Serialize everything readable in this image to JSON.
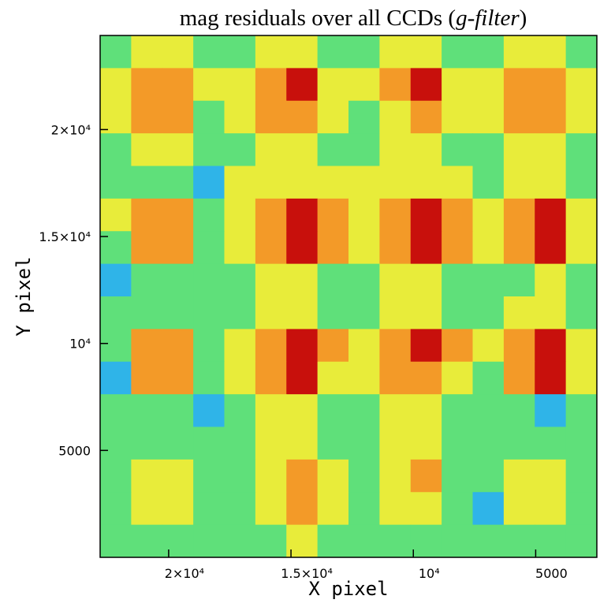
{
  "chart_data": {
    "type": "heatmap",
    "title": [
      "mag residuals over all CCDs (",
      "g-filter",
      ")"
    ],
    "x_label": "X pixel",
    "y_label": "Y pixel",
    "xlim": [
      22800,
      2500
    ],
    "ylim": [
      0,
      24400
    ],
    "xticks": [
      {
        "value": 20000,
        "label": "2×10⁴"
      },
      {
        "value": 15000,
        "label": "1.5×10⁴"
      },
      {
        "value": 10000,
        "label": "10⁴"
      },
      5000
    ],
    "yticks": [
      5000,
      {
        "value": 10000,
        "label": "10⁴"
      },
      {
        "value": 15000,
        "label": "1.5×10⁴"
      },
      {
        "value": 20000,
        "label": "2×10⁴"
      }
    ],
    "colors": [
      "#2fb4e8",
      "#5fe07a",
      "#e8ec3a",
      "#f39a28",
      "#c8100c"
    ],
    "z": [
      [
        1,
        2,
        2,
        1,
        1,
        2,
        2,
        1,
        1,
        2,
        2,
        1,
        1,
        2,
        2,
        1
      ],
      [
        2,
        3,
        3,
        2,
        2,
        3,
        4,
        2,
        2,
        3,
        4,
        2,
        2,
        3,
        3,
        2
      ],
      [
        2,
        3,
        3,
        1,
        2,
        3,
        3,
        2,
        1,
        2,
        3,
        2,
        2,
        3,
        3,
        2
      ],
      [
        1,
        2,
        2,
        1,
        1,
        2,
        2,
        1,
        1,
        2,
        2,
        1,
        1,
        2,
        2,
        1
      ],
      [
        1,
        1,
        1,
        0,
        2,
        2,
        2,
        2,
        2,
        2,
        2,
        2,
        1,
        2,
        2,
        1
      ],
      [
        2,
        3,
        3,
        1,
        2,
        3,
        4,
        3,
        2,
        3,
        4,
        3,
        2,
        3,
        4,
        2
      ],
      [
        1,
        3,
        3,
        1,
        2,
        3,
        4,
        3,
        2,
        3,
        4,
        3,
        2,
        3,
        4,
        2
      ],
      [
        0,
        1,
        1,
        1,
        1,
        2,
        2,
        1,
        1,
        2,
        2,
        1,
        1,
        1,
        2,
        1
      ],
      [
        1,
        1,
        1,
        1,
        1,
        2,
        2,
        1,
        1,
        2,
        2,
        1,
        1,
        2,
        2,
        1
      ],
      [
        1,
        3,
        3,
        1,
        2,
        3,
        4,
        3,
        2,
        3,
        4,
        3,
        2,
        3,
        4,
        2
      ],
      [
        0,
        3,
        3,
        1,
        2,
        3,
        4,
        2,
        2,
        3,
        3,
        2,
        1,
        3,
        4,
        2
      ],
      [
        1,
        1,
        1,
        0,
        1,
        2,
        2,
        1,
        1,
        2,
        2,
        1,
        1,
        1,
        0,
        1
      ],
      [
        1,
        1,
        1,
        1,
        1,
        2,
        2,
        1,
        1,
        2,
        2,
        1,
        1,
        1,
        1,
        1
      ],
      [
        1,
        2,
        2,
        1,
        1,
        2,
        3,
        2,
        1,
        2,
        3,
        1,
        1,
        2,
        2,
        1
      ],
      [
        1,
        2,
        2,
        1,
        1,
        2,
        3,
        2,
        1,
        2,
        2,
        1,
        0,
        2,
        2,
        1
      ],
      [
        1,
        1,
        1,
        1,
        1,
        1,
        2,
        1,
        1,
        1,
        1,
        1,
        1,
        1,
        1,
        1
      ]
    ]
  }
}
